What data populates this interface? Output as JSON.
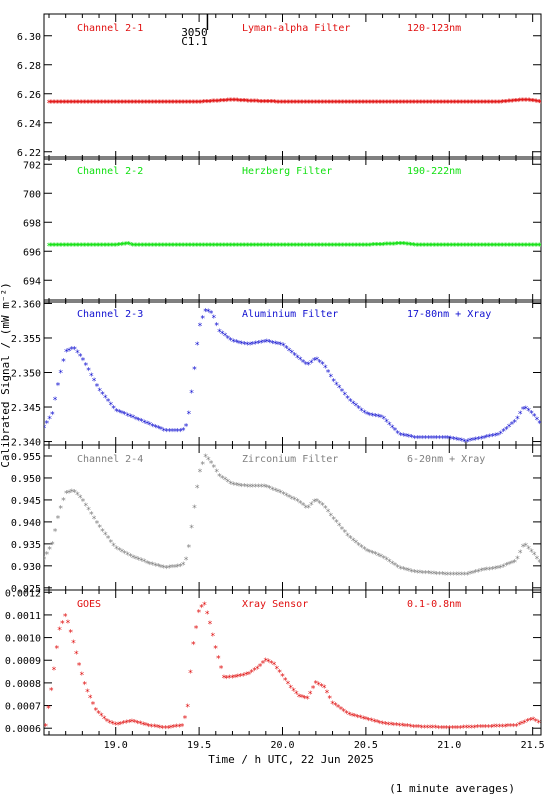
{
  "ylabel": "Calibrated Signal / (mW m⁻²)",
  "xlabel": "Time / h UTC, 22 Jun 2025",
  "footnote": "(1 minute averages)",
  "annotation": {
    "text_top": "3050",
    "text_bottom": "C1.1"
  },
  "colors": {
    "axis": "#000000",
    "red": "#e01010",
    "green": "#10e010",
    "blue": "#1010d0",
    "grey": "#808080"
  },
  "chart_data": [
    {
      "type": "scatter",
      "labels": [
        "Channel 2-1",
        "Lyman-alpha Filter",
        "120-123nm"
      ],
      "color": "#e01010",
      "ylim": [
        6.215,
        6.315
      ],
      "yticks": [
        6.22,
        6.24,
        6.26,
        6.28,
        6.3
      ],
      "yticklabels": [
        "6.22",
        "6.24",
        "6.26",
        "6.28",
        "6.30"
      ],
      "xlim": [
        18.57,
        21.55
      ],
      "xticks": [
        19.0,
        19.5,
        20.0,
        20.5,
        21.0,
        21.5
      ],
      "xticklabels": [
        "19.0",
        "19.5",
        "20.0",
        "20.5",
        "21.0",
        "21.5"
      ],
      "grid": false,
      "series": [
        {
          "x": [
            18.6,
            19.0,
            19.5,
            19.65,
            19.7,
            19.75,
            19.85,
            20.0,
            20.5,
            21.0,
            21.3,
            21.4,
            21.45,
            21.5,
            21.55
          ],
          "values": [
            6.254,
            6.254,
            6.254,
            6.255,
            6.2555,
            6.255,
            6.2545,
            6.254,
            6.254,
            6.254,
            6.254,
            6.255,
            6.2555,
            6.255,
            6.254
          ]
        }
      ]
    },
    {
      "type": "scatter",
      "labels": [
        "Channel 2-2",
        "Herzberg Filter",
        "190-222nm"
      ],
      "color": "#10e010",
      "ylim": [
        692.5,
        702.5
      ],
      "yticks": [
        694,
        696,
        698,
        700,
        702
      ],
      "yticklabels": [
        "694",
        "696",
        "698",
        "700",
        "702"
      ],
      "xlim": [
        18.57,
        21.55
      ],
      "xticks": [
        19.0,
        19.5,
        20.0,
        20.5,
        21.0,
        21.5
      ],
      "xticklabels": [
        "19.0",
        "19.5",
        "20.0",
        "20.5",
        "21.0",
        "21.5"
      ],
      "grid": false,
      "series": [
        {
          "x": [
            18.6,
            19.0,
            19.08,
            19.1,
            19.5,
            20.0,
            20.5,
            20.72,
            20.8,
            21.0,
            21.55
          ],
          "values": [
            696.4,
            696.4,
            696.5,
            696.4,
            696.4,
            696.4,
            696.4,
            696.5,
            696.4,
            696.4,
            696.4
          ]
        }
      ]
    },
    {
      "type": "scatter",
      "labels": [
        "Channel 2-3",
        "Aluminium Filter",
        "17-80nm + Xray"
      ],
      "color": "#1010d0",
      "ylim": [
        2.3395,
        2.3605
      ],
      "yticks": [
        2.34,
        2.345,
        2.35,
        2.355,
        2.36
      ],
      "yticklabels": [
        "2.340",
        "2.345",
        "2.350",
        "2.355",
        "2.360"
      ],
      "xlim": [
        18.57,
        21.55
      ],
      "xticks": [
        19.0,
        19.5,
        20.0,
        20.5,
        21.0,
        21.5
      ],
      "xticklabels": [
        "19.0",
        "19.5",
        "20.0",
        "20.5",
        "21.0",
        "21.5"
      ],
      "grid": false,
      "series": [
        {
          "x": [
            18.57,
            18.62,
            18.66,
            18.7,
            18.75,
            18.8,
            18.9,
            19.0,
            19.1,
            19.2,
            19.3,
            19.4,
            19.43,
            19.46,
            19.5,
            19.54,
            19.58,
            19.62,
            19.7,
            19.8,
            19.9,
            20.0,
            20.1,
            20.15,
            20.2,
            20.25,
            20.3,
            20.4,
            20.5,
            20.6,
            20.7,
            20.8,
            21.0,
            21.1,
            21.2,
            21.3,
            21.4,
            21.45,
            21.5,
            21.55
          ],
          "values": [
            2.342,
            2.344,
            2.349,
            2.353,
            2.3535,
            2.352,
            2.3475,
            2.3445,
            2.3435,
            2.3425,
            2.3415,
            2.3415,
            2.3425,
            2.348,
            2.3565,
            2.359,
            2.3585,
            2.356,
            2.3545,
            2.354,
            2.3545,
            2.354,
            2.352,
            2.351,
            2.352,
            2.351,
            2.349,
            2.346,
            2.344,
            2.3435,
            2.341,
            2.3405,
            2.3405,
            2.34,
            2.3405,
            2.341,
            2.343,
            2.345,
            2.344,
            2.3425
          ]
        }
      ]
    },
    {
      "type": "scatter",
      "labels": [
        "Channel 2-4",
        "Zirconium Filter",
        "6-20nm + Xray"
      ],
      "color": "#808080",
      "ylim": [
        0.9245,
        0.9575
      ],
      "yticks": [
        0.925,
        0.93,
        0.935,
        0.94,
        0.945,
        0.95,
        0.955
      ],
      "yticklabels": [
        "0.925",
        "0.930",
        "0.935",
        "0.940",
        "0.945",
        "0.950",
        "0.955"
      ],
      "xlim": [
        18.57,
        21.55
      ],
      "xticks": [
        19.0,
        19.5,
        20.0,
        20.5,
        21.0,
        21.5
      ],
      "xticklabels": [
        "19.0",
        "19.5",
        "20.0",
        "20.5",
        "21.0",
        "21.5"
      ],
      "grid": false,
      "series": [
        {
          "x": [
            18.57,
            18.62,
            18.66,
            18.7,
            18.75,
            18.8,
            18.9,
            19.0,
            19.1,
            19.2,
            19.3,
            19.4,
            19.43,
            19.46,
            19.5,
            19.54,
            19.58,
            19.62,
            19.7,
            19.8,
            19.9,
            20.0,
            20.1,
            20.15,
            20.2,
            20.25,
            20.3,
            20.4,
            20.5,
            20.6,
            20.7,
            20.8,
            21.0,
            21.1,
            21.2,
            21.3,
            21.4,
            21.45,
            21.5,
            21.55
          ],
          "values": [
            0.9315,
            0.935,
            0.942,
            0.9465,
            0.947,
            0.945,
            0.939,
            0.934,
            0.932,
            0.9305,
            0.9295,
            0.93,
            0.932,
            0.94,
            0.951,
            0.955,
            0.953,
            0.9505,
            0.9485,
            0.948,
            0.948,
            0.9465,
            0.9445,
            0.943,
            0.945,
            0.9435,
            0.941,
            0.9365,
            0.9335,
            0.932,
            0.9295,
            0.9285,
            0.928,
            0.928,
            0.929,
            0.9295,
            0.931,
            0.935,
            0.933,
            0.9305
          ]
        }
      ]
    },
    {
      "type": "scatter",
      "labels": [
        "GOES",
        "Xray Sensor",
        "0.1-0.8nm"
      ],
      "color": "#e01010",
      "ylim": [
        0.00057,
        0.00121
      ],
      "yticks": [
        0.0006,
        0.0007,
        0.0008,
        0.0009,
        0.001,
        0.0011,
        0.0012
      ],
      "yticklabels": [
        "0.0006",
        "0.0007",
        "0.0008",
        "0.0009",
        "0.0010",
        "0.0011",
        "0.0012"
      ],
      "xlim": [
        18.57,
        21.55
      ],
      "xticks": [
        19.0,
        19.5,
        20.0,
        20.5,
        21.0,
        21.5
      ],
      "xticklabels": [
        "19.0",
        "19.5",
        "20.0",
        "20.5",
        "21.0",
        "21.5"
      ],
      "grid": false,
      "series": [
        {
          "x": [
            18.58,
            18.62,
            18.66,
            18.7,
            18.74,
            18.78,
            18.82,
            18.88,
            18.95,
            19.0,
            19.1,
            19.2,
            19.3,
            19.4,
            19.43,
            19.46,
            19.5,
            19.53,
            19.56,
            19.6,
            19.65,
            19.7,
            19.75,
            19.8,
            19.86,
            19.9,
            19.95,
            20.0,
            20.05,
            20.1,
            20.15,
            20.2,
            20.25,
            20.3,
            20.4,
            20.5,
            20.6,
            20.8,
            21.0,
            21.2,
            21.4,
            21.5,
            21.55
          ],
          "values": [
            0.00061,
            0.0008,
            0.00103,
            0.0011,
            0.001,
            0.00088,
            0.00078,
            0.00068,
            0.00063,
            0.000615,
            0.00063,
            0.00061,
            0.0006,
            0.00061,
            0.00068,
            0.00095,
            0.00112,
            0.00115,
            0.00108,
            0.00095,
            0.00082,
            0.000825,
            0.00083,
            0.00084,
            0.00087,
            0.0009,
            0.00088,
            0.00083,
            0.00078,
            0.00074,
            0.00073,
            0.0008,
            0.00078,
            0.00071,
            0.00066,
            0.00064,
            0.00062,
            0.000605,
            0.0006,
            0.000605,
            0.00061,
            0.00064,
            0.00062
          ]
        }
      ]
    }
  ]
}
